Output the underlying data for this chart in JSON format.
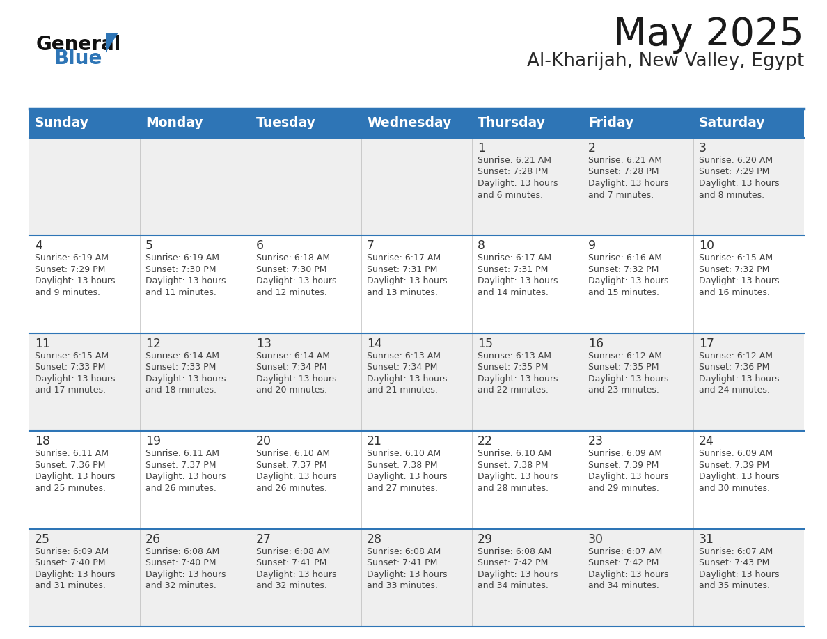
{
  "title": "May 2025",
  "subtitle": "Al-Kharijah, New Valley, Egypt",
  "header_bg": "#2E75B6",
  "header_text": "#FFFFFF",
  "cell_bg_odd": "#EFEFEF",
  "cell_bg_even": "#FFFFFF",
  "border_color": "#2E75B6",
  "text_color": "#444444",
  "day_number_color": "#333333",
  "day_headers": [
    "Sunday",
    "Monday",
    "Tuesday",
    "Wednesday",
    "Thursday",
    "Friday",
    "Saturday"
  ],
  "weeks": [
    [
      {
        "day": "",
        "info": ""
      },
      {
        "day": "",
        "info": ""
      },
      {
        "day": "",
        "info": ""
      },
      {
        "day": "",
        "info": ""
      },
      {
        "day": "1",
        "info": "Sunrise: 6:21 AM\nSunset: 7:28 PM\nDaylight: 13 hours\nand 6 minutes."
      },
      {
        "day": "2",
        "info": "Sunrise: 6:21 AM\nSunset: 7:28 PM\nDaylight: 13 hours\nand 7 minutes."
      },
      {
        "day": "3",
        "info": "Sunrise: 6:20 AM\nSunset: 7:29 PM\nDaylight: 13 hours\nand 8 minutes."
      }
    ],
    [
      {
        "day": "4",
        "info": "Sunrise: 6:19 AM\nSunset: 7:29 PM\nDaylight: 13 hours\nand 9 minutes."
      },
      {
        "day": "5",
        "info": "Sunrise: 6:19 AM\nSunset: 7:30 PM\nDaylight: 13 hours\nand 11 minutes."
      },
      {
        "day": "6",
        "info": "Sunrise: 6:18 AM\nSunset: 7:30 PM\nDaylight: 13 hours\nand 12 minutes."
      },
      {
        "day": "7",
        "info": "Sunrise: 6:17 AM\nSunset: 7:31 PM\nDaylight: 13 hours\nand 13 minutes."
      },
      {
        "day": "8",
        "info": "Sunrise: 6:17 AM\nSunset: 7:31 PM\nDaylight: 13 hours\nand 14 minutes."
      },
      {
        "day": "9",
        "info": "Sunrise: 6:16 AM\nSunset: 7:32 PM\nDaylight: 13 hours\nand 15 minutes."
      },
      {
        "day": "10",
        "info": "Sunrise: 6:15 AM\nSunset: 7:32 PM\nDaylight: 13 hours\nand 16 minutes."
      }
    ],
    [
      {
        "day": "11",
        "info": "Sunrise: 6:15 AM\nSunset: 7:33 PM\nDaylight: 13 hours\nand 17 minutes."
      },
      {
        "day": "12",
        "info": "Sunrise: 6:14 AM\nSunset: 7:33 PM\nDaylight: 13 hours\nand 18 minutes."
      },
      {
        "day": "13",
        "info": "Sunrise: 6:14 AM\nSunset: 7:34 PM\nDaylight: 13 hours\nand 20 minutes."
      },
      {
        "day": "14",
        "info": "Sunrise: 6:13 AM\nSunset: 7:34 PM\nDaylight: 13 hours\nand 21 minutes."
      },
      {
        "day": "15",
        "info": "Sunrise: 6:13 AM\nSunset: 7:35 PM\nDaylight: 13 hours\nand 22 minutes."
      },
      {
        "day": "16",
        "info": "Sunrise: 6:12 AM\nSunset: 7:35 PM\nDaylight: 13 hours\nand 23 minutes."
      },
      {
        "day": "17",
        "info": "Sunrise: 6:12 AM\nSunset: 7:36 PM\nDaylight: 13 hours\nand 24 minutes."
      }
    ],
    [
      {
        "day": "18",
        "info": "Sunrise: 6:11 AM\nSunset: 7:36 PM\nDaylight: 13 hours\nand 25 minutes."
      },
      {
        "day": "19",
        "info": "Sunrise: 6:11 AM\nSunset: 7:37 PM\nDaylight: 13 hours\nand 26 minutes."
      },
      {
        "day": "20",
        "info": "Sunrise: 6:10 AM\nSunset: 7:37 PM\nDaylight: 13 hours\nand 26 minutes."
      },
      {
        "day": "21",
        "info": "Sunrise: 6:10 AM\nSunset: 7:38 PM\nDaylight: 13 hours\nand 27 minutes."
      },
      {
        "day": "22",
        "info": "Sunrise: 6:10 AM\nSunset: 7:38 PM\nDaylight: 13 hours\nand 28 minutes."
      },
      {
        "day": "23",
        "info": "Sunrise: 6:09 AM\nSunset: 7:39 PM\nDaylight: 13 hours\nand 29 minutes."
      },
      {
        "day": "24",
        "info": "Sunrise: 6:09 AM\nSunset: 7:39 PM\nDaylight: 13 hours\nand 30 minutes."
      }
    ],
    [
      {
        "day": "25",
        "info": "Sunrise: 6:09 AM\nSunset: 7:40 PM\nDaylight: 13 hours\nand 31 minutes."
      },
      {
        "day": "26",
        "info": "Sunrise: 6:08 AM\nSunset: 7:40 PM\nDaylight: 13 hours\nand 32 minutes."
      },
      {
        "day": "27",
        "info": "Sunrise: 6:08 AM\nSunset: 7:41 PM\nDaylight: 13 hours\nand 32 minutes."
      },
      {
        "day": "28",
        "info": "Sunrise: 6:08 AM\nSunset: 7:41 PM\nDaylight: 13 hours\nand 33 minutes."
      },
      {
        "day": "29",
        "info": "Sunrise: 6:08 AM\nSunset: 7:42 PM\nDaylight: 13 hours\nand 34 minutes."
      },
      {
        "day": "30",
        "info": "Sunrise: 6:07 AM\nSunset: 7:42 PM\nDaylight: 13 hours\nand 34 minutes."
      },
      {
        "day": "31",
        "info": "Sunrise: 6:07 AM\nSunset: 7:43 PM\nDaylight: 13 hours\nand 35 minutes."
      }
    ]
  ]
}
